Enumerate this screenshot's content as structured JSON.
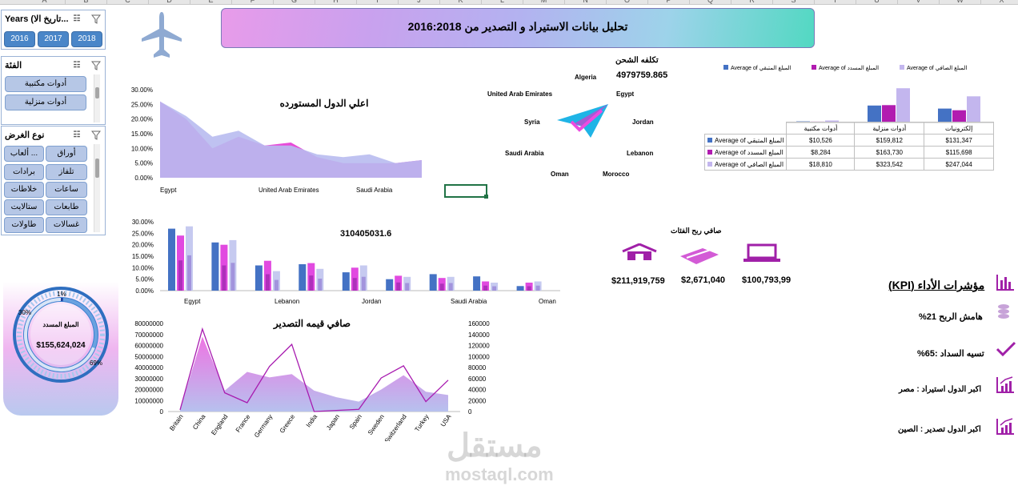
{
  "column_letters": [
    "A",
    "B",
    "C",
    "D",
    "E",
    "F",
    "G",
    "H",
    "I",
    "J",
    "K",
    "L",
    "M",
    "N",
    "O",
    "P",
    "Q",
    "R",
    "S",
    "T",
    "U",
    "V",
    "W",
    "X"
  ],
  "banner": {
    "title": "تحليل بيانات الاستيراد و التصدير من 2016:2018"
  },
  "slicer_years": {
    "title": "Years (تاريخ الا...",
    "items": [
      "2016",
      "2017",
      "2018"
    ]
  },
  "slicer_category": {
    "title": "الفئة",
    "items": [
      "أدوات مكتبية",
      "أدوات منزلية"
    ]
  },
  "slicer_purpose": {
    "title": "نوع الغرض",
    "items": [
      "أوراق",
      "ألعاب ...",
      "تلفاز",
      "برادات",
      "ساعات",
      "خلاطات",
      "طابعات",
      "ستالايت",
      "غسالات",
      "طاولات"
    ]
  },
  "shipping": {
    "label": "تكلفه الشحن",
    "value": "4979759.865",
    "countries": [
      "Algeria",
      "United Arab Emirates",
      "Egypt",
      "Syria",
      "Jordan",
      "Saudi Arabia",
      "Lebanon",
      "Oman",
      "Morocco"
    ]
  },
  "chart_data": [
    {
      "type": "area",
      "title": "اعلي الدول المستورده",
      "x_tick_labels": [
        "Egypt",
        "United Arab Emirates",
        "Saudi Arabia"
      ],
      "y_tick_labels": [
        "0.00%",
        "5.00%",
        "10.00%",
        "15.00%",
        "20.00%",
        "25.00%",
        "30.00%"
      ],
      "ylim": [
        0,
        0.3
      ],
      "series": [
        {
          "values": [
            0.26,
            0.21,
            0.14,
            0.16,
            0.11,
            0.11,
            0.08,
            0.07,
            0.08,
            0.05,
            0.06
          ]
        },
        {
          "values": [
            0.26,
            0.2,
            0.1,
            0.14,
            0.11,
            0.12,
            0.07,
            0.05,
            0.05,
            0.05,
            0.06
          ]
        }
      ]
    },
    {
      "type": "bar",
      "title": "Average of",
      "categories": [
        "أدوات مكتبية",
        "أدوات منزلية",
        "إلكترونيات"
      ],
      "series": [
        {
          "name": "Average of المبلغ المتبقي",
          "values": [
            10526,
            159812,
            131347
          ],
          "color": "#4472c4"
        },
        {
          "name": "Average of المبلغ المسدد",
          "values": [
            8284,
            163730,
            115698
          ],
          "color": "#b11cb0"
        },
        {
          "name": "Average of المبلغ الصافي",
          "values": [
            18810,
            323542,
            247044
          ],
          "color": "#c3b6ee"
        }
      ]
    },
    {
      "type": "bar",
      "title": "310405031.6",
      "x_tick_labels": [
        "Egypt",
        "Lebanon",
        "Jordan",
        "Saudi Arabia",
        "Oman"
      ],
      "y_tick_labels": [
        "0.00%",
        "5.00%",
        "10.00%",
        "15.00%",
        "20.00%",
        "25.00%",
        "30.00%"
      ],
      "ylim": [
        0,
        0.3
      ],
      "groups": [
        [
          0.27,
          0.24,
          0.28
        ],
        [
          0.21,
          0.2,
          0.22
        ],
        [
          0.11,
          0.13,
          0.085
        ],
        [
          0.115,
          0.12,
          0.095
        ],
        [
          0.08,
          0.1,
          0.11
        ],
        [
          0.05,
          0.065,
          0.06
        ],
        [
          0.072,
          0.055,
          0.06
        ],
        [
          0.062,
          0.04,
          0.035
        ],
        [
          0.02,
          0.035,
          0.04
        ]
      ]
    },
    {
      "type": "area",
      "title": "صافي قيمه التصدير",
      "categories": [
        "Britain",
        "China",
        "England",
        "France",
        "Germany",
        "Greece",
        "India",
        "Japan",
        "Spain",
        "Sweden",
        "Switzerland",
        "Turkey",
        "USA"
      ],
      "y_tick_labels": [
        "0",
        "10000000",
        "20000000",
        "30000000",
        "40000000",
        "50000000",
        "60000000",
        "70000000",
        "80000000"
      ],
      "y2_tick_labels": [
        "0",
        "20000",
        "40000",
        "60000",
        "80000",
        "100000",
        "120000",
        "140000",
        "160000"
      ],
      "area_values": [
        2000000,
        68000000,
        19000000,
        36000000,
        31000000,
        34000000,
        19000000,
        13000000,
        9000000,
        20000000,
        33000000,
        18000000,
        15000000
      ],
      "line_values": [
        3000,
        150000,
        34000,
        16000,
        82000,
        122000,
        0,
        2000,
        4000,
        61000,
        83000,
        18000,
        57000
      ]
    },
    {
      "type": "pie",
      "title": "المبلغ المسدد",
      "center_value": "$155,624,024",
      "slice_labels": [
        "1%",
        "30%",
        "69%"
      ],
      "values": [
        0.01,
        0.3,
        0.69
      ]
    }
  ],
  "pivot": {
    "headers": [
      "أدوات مكتبية",
      "أدوات منزلية",
      "إلكترونيات"
    ],
    "rows": [
      {
        "label": "Average of المبلغ المتبقي",
        "values": [
          "$10,526",
          "$159,812",
          "$131,347"
        ],
        "color": "#4472c4"
      },
      {
        "label": "Average of المبلغ المسدد",
        "values": [
          "$8,284",
          "$163,730",
          "$115,698"
        ],
        "color": "#b11cb0"
      },
      {
        "label": "Average of المبلغ الصافي",
        "values": [
          "$18,810",
          "$323,542",
          "$247,044"
        ],
        "color": "#c3b6ee"
      }
    ]
  },
  "category_profit": {
    "title": "صافي ربح الفئات",
    "values": [
      "$211,919,759",
      "$2,671,040",
      "$100,793,99"
    ]
  },
  "kpi": {
    "title": "مؤشرات الأداء (KPI)",
    "items": [
      "هامش الربح 21%",
      "تسيه السداد :65%",
      "اكبر الدول استيراد : مصر",
      "اكبر الدول تصدير : الصين"
    ]
  },
  "watermark": {
    "ar": "مستقل",
    "en": "mostaql.com"
  },
  "colors": {
    "accent": "#9b1fa8",
    "slicer_blue": "#4a86c8",
    "pink": "#e84bd8",
    "lavender": "#b8bbef"
  }
}
